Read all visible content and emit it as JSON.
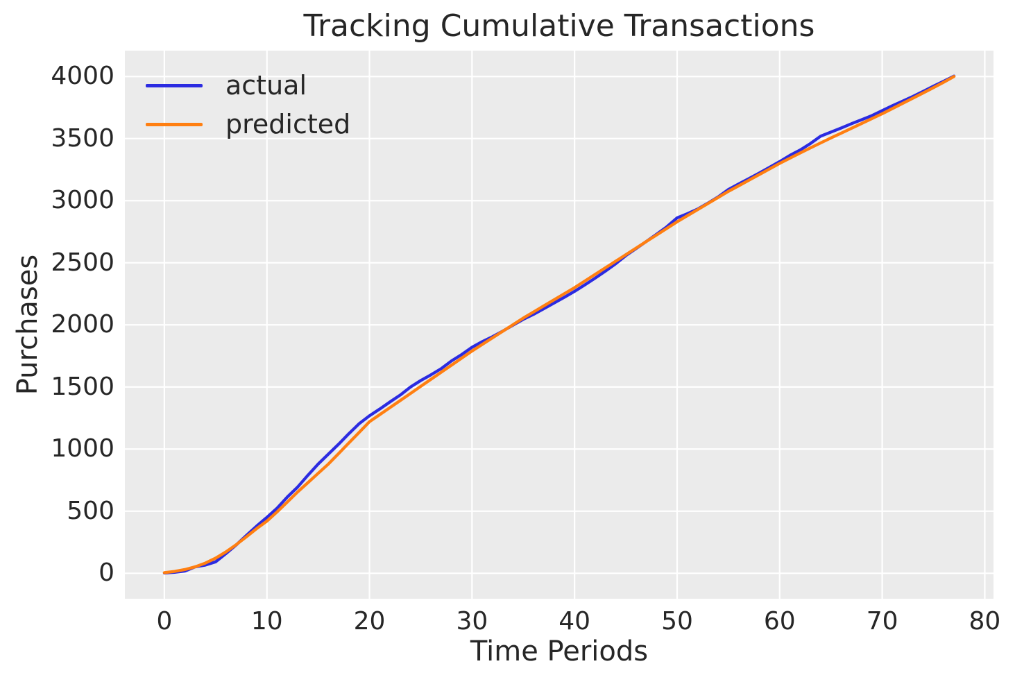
{
  "title": "Tracking Cumulative Transactions",
  "axes": {
    "xlabel": "Time Periods",
    "ylabel": "Purchases",
    "x_ticks": [
      0,
      10,
      20,
      30,
      40,
      50,
      60,
      70,
      80
    ],
    "y_ticks": [
      0,
      500,
      1000,
      1500,
      2000,
      2500,
      3000,
      3500,
      4000
    ]
  },
  "colors": {
    "actual_line": "#2b2be1",
    "predicted_line": "#ff7f11",
    "plot_background": "#ebebeb",
    "gridline": "#ffffff",
    "text": "#262626",
    "figure_background": "#ffffff"
  },
  "chart_data": {
    "type": "line",
    "title": "Tracking Cumulative Transactions",
    "xlabel": "Time Periods",
    "ylabel": "Purchases",
    "grid": true,
    "legend_position": "upper left",
    "xlim": [
      -3.85,
      80.85
    ],
    "ylim": [
      -205,
      4208
    ],
    "x": [
      0,
      1,
      2,
      3,
      4,
      5,
      6,
      7,
      8,
      9,
      10,
      11,
      12,
      13,
      14,
      15,
      16,
      17,
      18,
      19,
      20,
      21,
      22,
      23,
      24,
      25,
      26,
      27,
      28,
      29,
      30,
      31,
      32,
      33,
      34,
      35,
      36,
      37,
      38,
      39,
      40,
      41,
      42,
      43,
      44,
      45,
      46,
      47,
      48,
      49,
      50,
      51,
      52,
      53,
      54,
      55,
      56,
      57,
      58,
      59,
      60,
      61,
      62,
      63,
      64,
      65,
      66,
      67,
      68,
      69,
      70,
      71,
      72,
      73,
      74,
      75,
      76,
      77
    ],
    "series": [
      {
        "name": "actual",
        "color": "#2b2be1",
        "values": [
          2,
          8,
          18,
          52,
          66,
          92,
          158,
          228,
          305,
          380,
          450,
          525,
          615,
          695,
          790,
          880,
          960,
          1040,
          1125,
          1205,
          1268,
          1322,
          1380,
          1435,
          1500,
          1552,
          1598,
          1648,
          1710,
          1762,
          1820,
          1865,
          1905,
          1950,
          1998,
          2045,
          2085,
          2130,
          2176,
          2222,
          2270,
          2322,
          2376,
          2432,
          2492,
          2558,
          2615,
          2672,
          2730,
          2790,
          2862,
          2895,
          2932,
          2980,
          3030,
          3090,
          3135,
          3178,
          3222,
          3268,
          3315,
          3365,
          3408,
          3460,
          3520,
          3552,
          3585,
          3620,
          3652,
          3685,
          3725,
          3765,
          3802,
          3840,
          3880,
          3922,
          3962,
          4003
        ]
      },
      {
        "name": "predicted",
        "color": "#ff7f11",
        "values": [
          5,
          15,
          30,
          52,
          82,
          122,
          172,
          230,
          294,
          360,
          420,
          495,
          575,
          655,
          730,
          805,
          880,
          965,
          1050,
          1135,
          1220,
          1277,
          1334,
          1391,
          1448,
          1505,
          1562,
          1619,
          1676,
          1733,
          1790,
          1843,
          1896,
          1949,
          2002,
          2055,
          2104,
          2153,
          2202,
          2251,
          2300,
          2353,
          2406,
          2459,
          2512,
          2565,
          2618,
          2671,
          2724,
          2777,
          2830,
          2879,
          2928,
          2977,
          3026,
          3075,
          3120,
          3165,
          3210,
          3255,
          3300,
          3342,
          3384,
          3425,
          3465,
          3505,
          3544,
          3583,
          3622,
          3661,
          3700,
          3742,
          3784,
          3826,
          3868,
          3910,
          3954,
          4000
        ]
      }
    ]
  }
}
